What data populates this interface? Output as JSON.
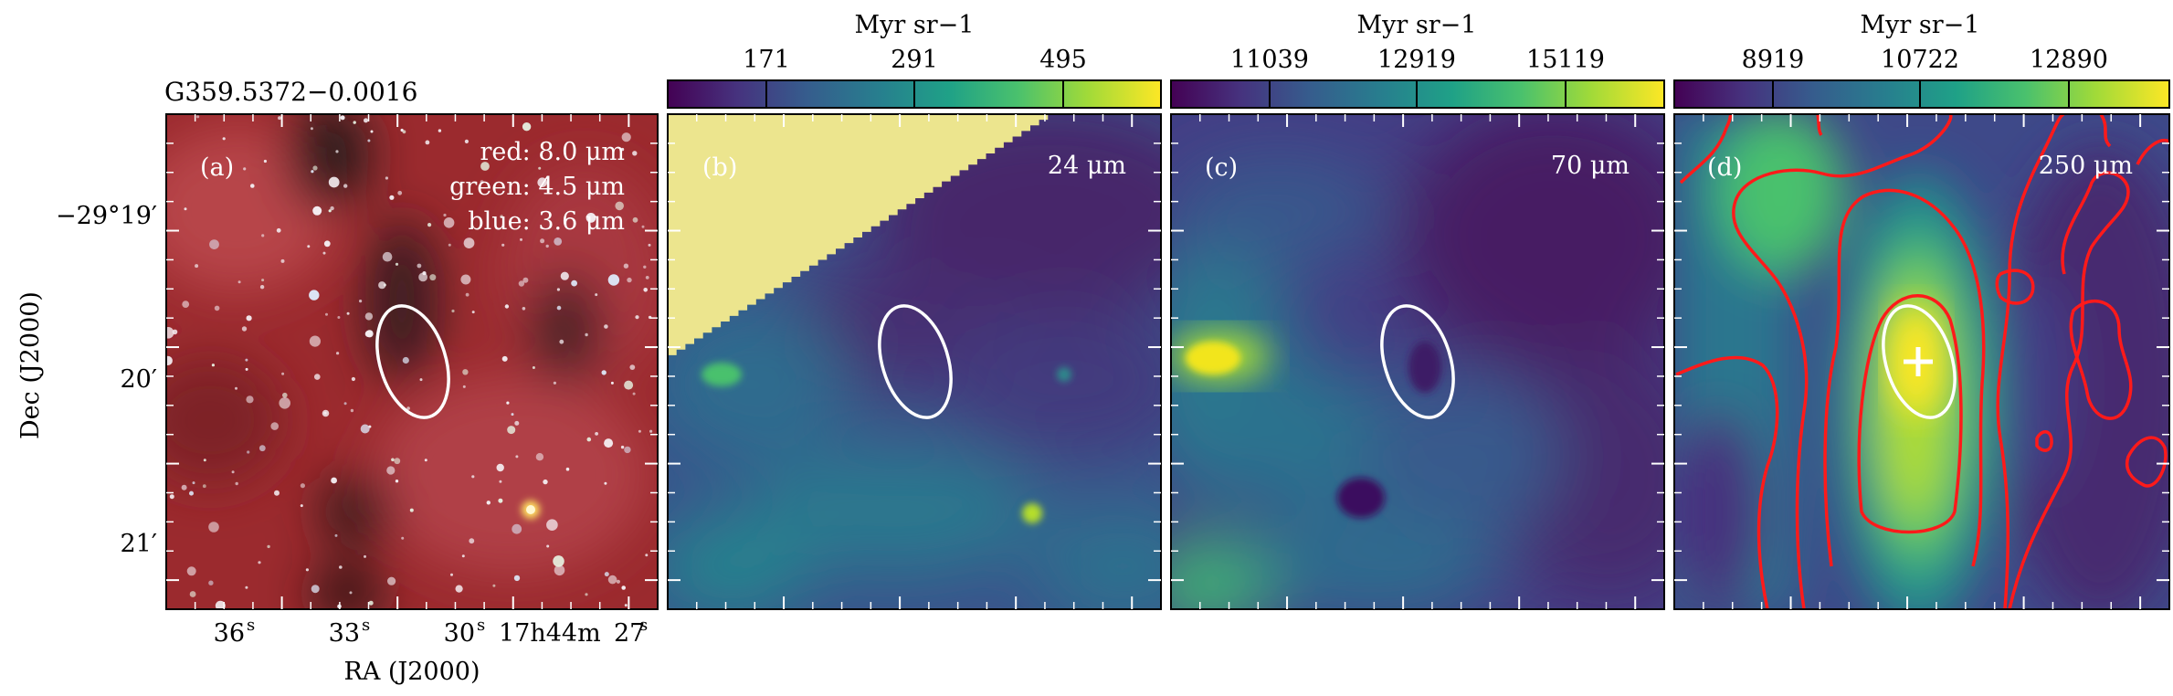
{
  "source_name": "G359.5372−0.0016",
  "axes": {
    "ylabel": "Dec (J2000)",
    "xlabel": "RA (J2000)",
    "dec_ticks": [
      "−29°19′",
      "20′",
      "21′"
    ],
    "ra_ticks": [
      {
        "value": "36",
        "sup": "s",
        "prefix": ""
      },
      {
        "value": "33",
        "sup": "s",
        "prefix": ""
      },
      {
        "value": "30",
        "sup": "s",
        "prefix": ""
      },
      {
        "value": "27",
        "sup": "s",
        "prefix": "17h44m"
      }
    ]
  },
  "panels": [
    {
      "id": "a",
      "label": "(a)",
      "legend": [
        "red: 8.0 μm",
        "green: 4.5 μm",
        "blue: 3.6 μm"
      ],
      "wavelength": ""
    },
    {
      "id": "b",
      "label": "(b)",
      "wavelength": "24 μm",
      "colorbar": {
        "unit": "Myr sr−1",
        "ticks": [
          "171",
          "291",
          "495"
        ]
      }
    },
    {
      "id": "c",
      "label": "(c)",
      "wavelength": "70 μm",
      "colorbar": {
        "unit": "Myr sr−1",
        "ticks": [
          "11039",
          "12919",
          "15119"
        ]
      }
    },
    {
      "id": "d",
      "label": "(d)",
      "wavelength": "250 μm",
      "colorbar": {
        "unit": "Myr sr−1",
        "ticks": [
          "8919",
          "10722",
          "12890"
        ]
      }
    }
  ],
  "colors": {
    "viridis": [
      "#440154",
      "#46327e",
      "#365c8d",
      "#277f8e",
      "#1fa187",
      "#4ac16d",
      "#a0da39",
      "#fde725"
    ],
    "contour": "#ff1a1a",
    "ellipse": "#ffffff",
    "mask": "#ece58e"
  }
}
